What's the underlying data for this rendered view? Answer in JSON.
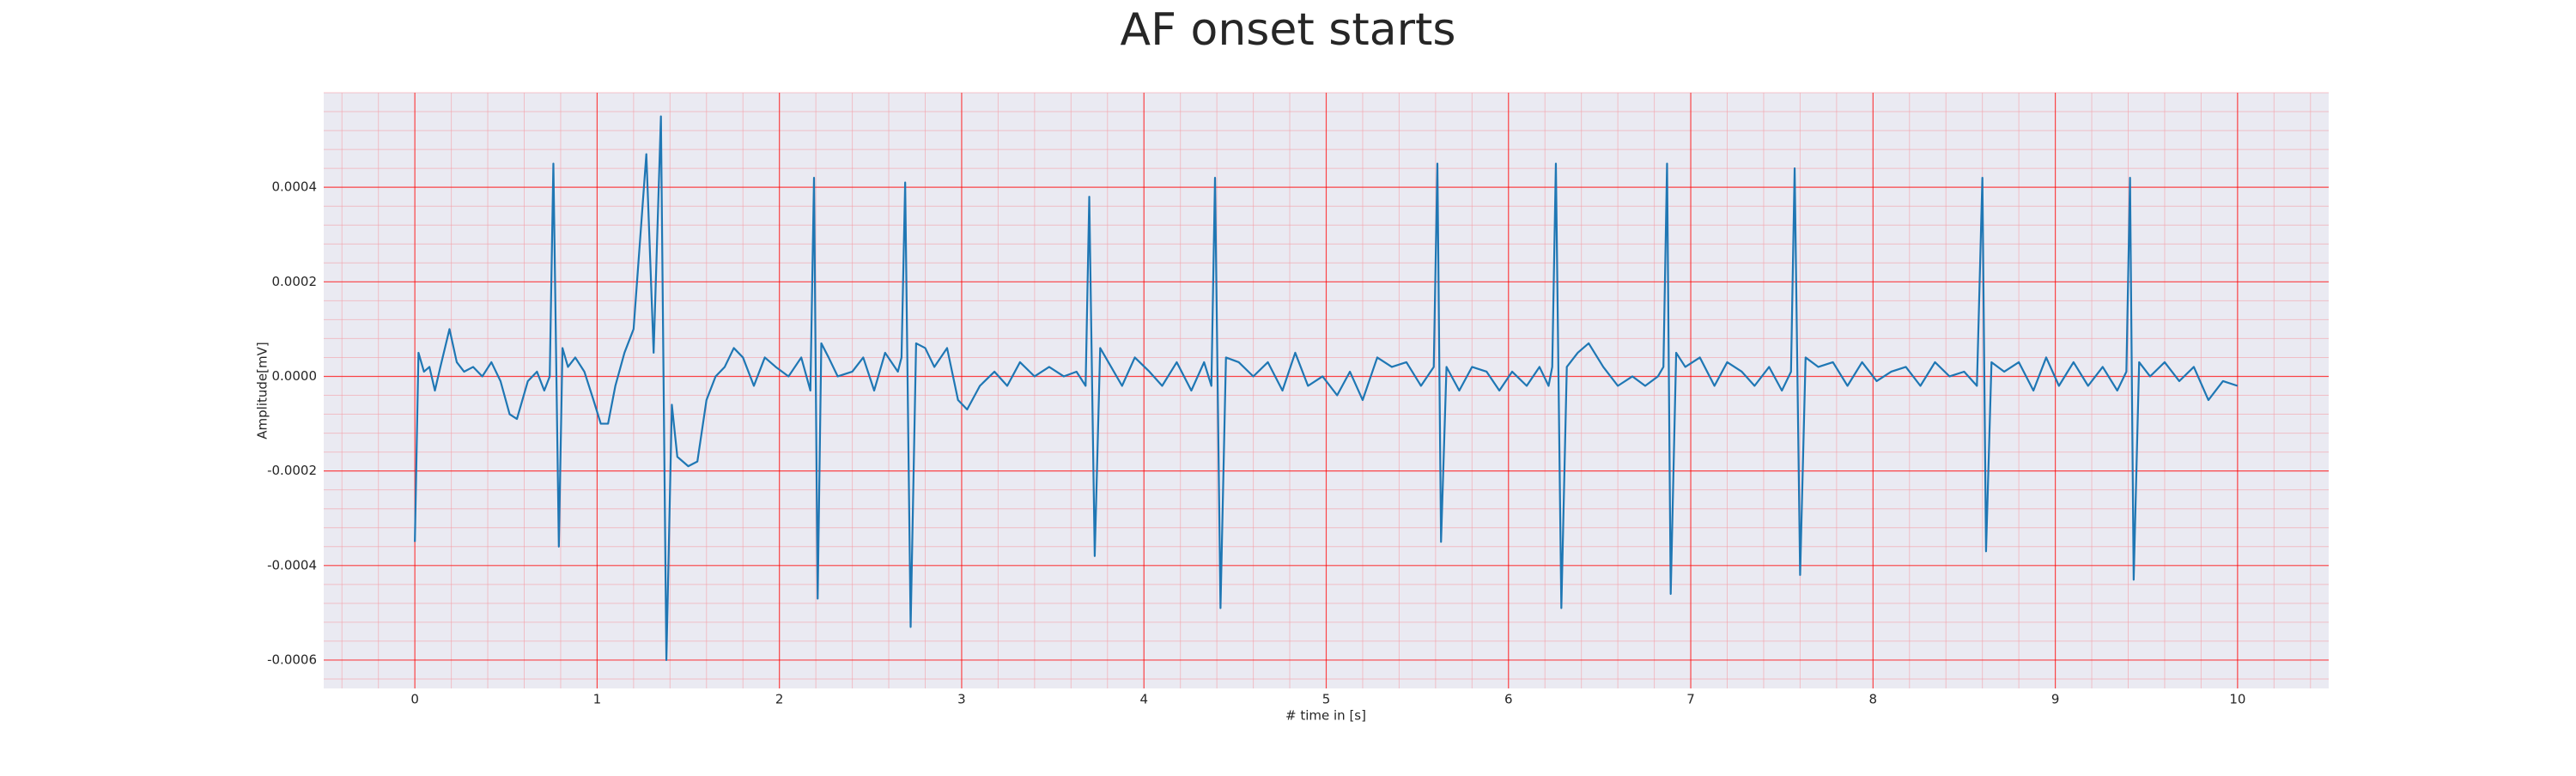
{
  "chart_data": {
    "type": "line",
    "title": "AF onset starts",
    "xlabel": "# time in [s]",
    "ylabel": "Amplitude[mV]",
    "color": "#1f77b4",
    "grid": true,
    "minor_grid": true,
    "xlim": [
      -0.5,
      10.5
    ],
    "ylim": [
      -0.00066,
      0.0006
    ],
    "xticks": [
      0,
      1,
      2,
      3,
      4,
      5,
      6,
      7,
      8,
      9,
      10
    ],
    "yticks": [
      -0.0006,
      -0.0004,
      -0.0002,
      {
        "value": 0,
        "label": "0.0000"
      },
      0.0002,
      0.0004
    ],
    "x": [
      0,
      0.02,
      0.05,
      0.08,
      0.11,
      0.14,
      0.19,
      0.23,
      0.27,
      0.32,
      0.37,
      0.42,
      0.47,
      0.52,
      0.56,
      0.62,
      0.67,
      0.71,
      0.74,
      0.76,
      0.79,
      0.81,
      0.84,
      0.88,
      0.93,
      0.98,
      1.02,
      1.06,
      1.1,
      1.15,
      1.2,
      1.27,
      1.31,
      1.35,
      1.38,
      1.41,
      1.44,
      1.5,
      1.55,
      1.6,
      1.65,
      1.7,
      1.75,
      1.8,
      1.86,
      1.92,
      1.98,
      2.05,
      2.12,
      2.17,
      2.19,
      2.21,
      2.23,
      2.27,
      2.32,
      2.4,
      2.46,
      2.52,
      2.58,
      2.65,
      2.67,
      2.69,
      2.72,
      2.75,
      2.8,
      2.85,
      2.92,
      2.98,
      3.03,
      3.1,
      3.18,
      3.25,
      3.32,
      3.4,
      3.48,
      3.56,
      3.63,
      3.68,
      3.7,
      3.73,
      3.76,
      3.82,
      3.88,
      3.95,
      4.03,
      4.1,
      4.18,
      4.26,
      4.33,
      4.37,
      4.39,
      4.42,
      4.45,
      4.52,
      4.6,
      4.68,
      4.76,
      4.83,
      4.9,
      4.98,
      5.06,
      5.13,
      5.2,
      5.28,
      5.36,
      5.44,
      5.52,
      5.59,
      5.61,
      5.63,
      5.66,
      5.73,
      5.8,
      5.88,
      5.95,
      6.02,
      6.1,
      6.17,
      6.22,
      6.24,
      6.26,
      6.29,
      6.32,
      6.38,
      6.44,
      6.52,
      6.6,
      6.68,
      6.75,
      6.82,
      6.85,
      6.87,
      6.89,
      6.92,
      6.97,
      7.05,
      7.13,
      7.2,
      7.28,
      7.35,
      7.43,
      7.5,
      7.55,
      7.57,
      7.6,
      7.63,
      7.7,
      7.78,
      7.86,
      7.94,
      8.02,
      8.1,
      8.18,
      8.26,
      8.34,
      8.42,
      8.5,
      8.57,
      8.6,
      8.62,
      8.65,
      8.72,
      8.8,
      8.88,
      8.95,
      9.02,
      9.1,
      9.18,
      9.26,
      9.34,
      9.39,
      9.41,
      9.43,
      9.46,
      9.52,
      9.6,
      9.68,
      9.76,
      9.84,
      9.92,
      10
    ],
    "values": [
      -0.00035,
      5e-05,
      1e-05,
      2e-05,
      -3e-05,
      2e-05,
      0.0001,
      3e-05,
      1e-05,
      2e-05,
      0,
      3e-05,
      -1e-05,
      -8e-05,
      -9e-05,
      -1e-05,
      1e-05,
      -3e-05,
      0,
      0.00045,
      -0.00036,
      6e-05,
      2e-05,
      4e-05,
      1e-05,
      -5e-05,
      -0.0001,
      -0.0001,
      -2e-05,
      5e-05,
      0.0001,
      0.00047,
      5e-05,
      0.00055,
      -0.0006,
      -6e-05,
      -0.00017,
      -0.00019,
      -0.00018,
      -5e-05,
      0,
      2e-05,
      6e-05,
      4e-05,
      -2e-05,
      4e-05,
      2e-05,
      0,
      4e-05,
      -3e-05,
      0.00042,
      -0.00047,
      7e-05,
      4e-05,
      0,
      1e-05,
      4e-05,
      -3e-05,
      5e-05,
      1e-05,
      4e-05,
      0.00041,
      -0.00053,
      7e-05,
      6e-05,
      2e-05,
      6e-05,
      -5e-05,
      -7e-05,
      -2e-05,
      1e-05,
      -2e-05,
      3e-05,
      0,
      2e-05,
      0,
      1e-05,
      -2e-05,
      0.00038,
      -0.00038,
      6e-05,
      2e-05,
      -2e-05,
      4e-05,
      1e-05,
      -2e-05,
      3e-05,
      -3e-05,
      3e-05,
      -2e-05,
      0.00042,
      -0.00049,
      4e-05,
      3e-05,
      0,
      3e-05,
      -3e-05,
      5e-05,
      -2e-05,
      0,
      -4e-05,
      1e-05,
      -5e-05,
      4e-05,
      2e-05,
      3e-05,
      -2e-05,
      2e-05,
      0.00045,
      -0.00035,
      2e-05,
      -3e-05,
      2e-05,
      1e-05,
      -3e-05,
      1e-05,
      -2e-05,
      2e-05,
      -2e-05,
      2e-05,
      0.00045,
      -0.00049,
      2e-05,
      5e-05,
      7e-05,
      2e-05,
      -2e-05,
      0,
      -2e-05,
      0,
      2e-05,
      0.00045,
      -0.00046,
      5e-05,
      2e-05,
      4e-05,
      -2e-05,
      3e-05,
      1e-05,
      -2e-05,
      2e-05,
      -3e-05,
      1e-05,
      0.00044,
      -0.00042,
      4e-05,
      2e-05,
      3e-05,
      -2e-05,
      3e-05,
      -1e-05,
      1e-05,
      2e-05,
      -2e-05,
      3e-05,
      0,
      1e-05,
      -2e-05,
      0.00042,
      -0.00037,
      3e-05,
      1e-05,
      3e-05,
      -3e-05,
      4e-05,
      -2e-05,
      3e-05,
      -2e-05,
      2e-05,
      -3e-05,
      1e-05,
      0.00042,
      -0.00043,
      3e-05,
      0,
      3e-05,
      -1e-05,
      2e-05,
      -5e-05,
      -1e-05,
      -2e-05
    ]
  }
}
